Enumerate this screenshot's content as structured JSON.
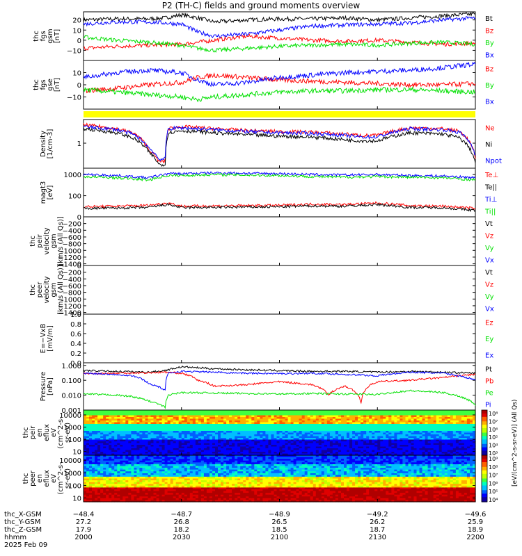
{
  "title": "P2 (TH-C) fields and ground moments overview",
  "date_label": "2025 Feb 09",
  "colors": {
    "red": "#ff0000",
    "green": "#00e000",
    "blue": "#0000ff",
    "black": "#000000",
    "yellow": "#ffff00"
  },
  "chart_data": [
    {
      "type": "line",
      "ylabel": [
        "thc",
        "fgs",
        "gsm",
        "[nT]"
      ],
      "ylim": [
        -20,
        28
      ],
      "yticks": [
        "20",
        "10",
        "0",
        "−10"
      ],
      "ytick_values": [
        20,
        10,
        0,
        -10
      ],
      "legend": [
        "Bt",
        "Bz",
        "By",
        "Bx"
      ],
      "series": [
        {
          "name": "Bt",
          "color": "#000000",
          "x": [
            2000,
            2010,
            2020,
            2025,
            2030,
            2035,
            2040,
            2050,
            2100,
            2110,
            2120,
            2130,
            2140,
            2150,
            2200
          ],
          "y": [
            20,
            21,
            21,
            22,
            25,
            22,
            18,
            20,
            21,
            21,
            22,
            20,
            22,
            24,
            26
          ]
        },
        {
          "name": "Bz",
          "color": "#ff0000",
          "x": [
            2000,
            2010,
            2020,
            2030,
            2035,
            2040,
            2050,
            2100,
            2110,
            2120,
            2130,
            2140,
            2150,
            2200
          ],
          "y": [
            -8,
            -6,
            -5,
            -4,
            -2,
            0,
            4,
            2,
            0,
            -1,
            0,
            -2,
            -4,
            -3
          ]
        },
        {
          "name": "By",
          "color": "#00e000",
          "x": [
            2000,
            2010,
            2020,
            2030,
            2035,
            2040,
            2050,
            2100,
            2110,
            2120,
            2130,
            2140,
            2150,
            2200
          ],
          "y": [
            3,
            0,
            -2,
            -5,
            -8,
            -10,
            -8,
            -6,
            -5,
            -4,
            -5,
            -3,
            -2,
            -4
          ]
        },
        {
          "name": "Bx",
          "color": "#0000ff",
          "x": [
            2000,
            2010,
            2020,
            2030,
            2035,
            2040,
            2050,
            2100,
            2110,
            2120,
            2130,
            2140,
            2150,
            2200
          ],
          "y": [
            16,
            18,
            18,
            16,
            8,
            4,
            6,
            10,
            14,
            15,
            16,
            17,
            20,
            22
          ]
        }
      ]
    },
    {
      "type": "line",
      "ylabel": [
        "thc",
        "fgs",
        "gse",
        "[nT]"
      ],
      "ylim": [
        -20,
        20
      ],
      "yticks": [
        "10",
        "0",
        "−10"
      ],
      "ytick_values": [
        10,
        0,
        -10
      ],
      "legend": [
        "Bz",
        "By",
        "Bx"
      ],
      "series": [
        {
          "name": "Bz",
          "color": "#ff0000",
          "x": [
            2000,
            2010,
            2020,
            2030,
            2035,
            2040,
            2050,
            2100,
            2110,
            2120,
            2130,
            2140,
            2150,
            2200
          ],
          "y": [
            -5,
            -3,
            0,
            2,
            6,
            8,
            6,
            4,
            3,
            2,
            1,
            0,
            0,
            1
          ]
        },
        {
          "name": "By",
          "color": "#00e000",
          "x": [
            2000,
            2010,
            2020,
            2030,
            2035,
            2040,
            2050,
            2100,
            2110,
            2120,
            2130,
            2140,
            2150,
            2200
          ],
          "y": [
            -4,
            -6,
            -8,
            -10,
            -12,
            -10,
            -8,
            -6,
            -5,
            -5,
            -4,
            -4,
            -5,
            -6
          ]
        },
        {
          "name": "Bx",
          "color": "#0000ff",
          "x": [
            2000,
            2010,
            2020,
            2030,
            2035,
            2040,
            2050,
            2100,
            2110,
            2120,
            2130,
            2140,
            2150,
            2200
          ],
          "y": [
            6,
            10,
            12,
            10,
            4,
            0,
            2,
            6,
            8,
            10,
            11,
            12,
            14,
            17
          ]
        }
      ]
    },
    {
      "type": "line",
      "ylabel": [
        "Density",
        "[1/cm-3]"
      ],
      "ylim": [
        0.15,
        6
      ],
      "scale": "log",
      "yticks": [
        "1"
      ],
      "ytick_values": [
        1
      ],
      "legend": [
        "Ne",
        "Ni",
        "Npot"
      ],
      "series": [
        {
          "name": "Ne",
          "color": "#ff0000",
          "x": [
            2000,
            2010,
            2015,
            2020,
            2023,
            2025,
            2026,
            2030,
            2040,
            2050,
            2100,
            2110,
            2120,
            2125,
            2130,
            2140,
            2150,
            2155,
            2200
          ],
          "y": [
            4,
            3,
            2.2,
            0.6,
            0.25,
            0.25,
            3,
            3.5,
            3,
            2.6,
            2.4,
            2.3,
            2.0,
            1.8,
            1.8,
            3.2,
            3,
            2.5,
            0.3
          ]
        },
        {
          "name": "Ni",
          "color": "#000000",
          "x": [
            2000,
            2010,
            2015,
            2020,
            2023,
            2025,
            2026,
            2030,
            2040,
            2050,
            2100,
            2110,
            2120,
            2125,
            2130,
            2140,
            2150,
            2155,
            2200
          ],
          "y": [
            3,
            2.2,
            1.5,
            0.5,
            0.2,
            0.2,
            2.2,
            2.6,
            2.2,
            1.9,
            1.7,
            1.6,
            1.3,
            1.2,
            1.2,
            2.2,
            2,
            1.5,
            0.22
          ]
        },
        {
          "name": "Npot",
          "color": "#0000ff",
          "x": [
            2000,
            2010,
            2015,
            2020,
            2023,
            2025,
            2026,
            2030,
            2040,
            2050,
            2100,
            2110,
            2120,
            2125,
            2130,
            2140,
            2150,
            2155,
            2200
          ],
          "y": [
            3.5,
            2.8,
            2,
            0.7,
            0.3,
            0.3,
            3,
            3.2,
            2.8,
            2.4,
            2.2,
            2.1,
            1.8,
            1.6,
            1.6,
            3,
            2.8,
            2.3,
            0.4
          ]
        }
      ]
    },
    {
      "type": "line",
      "ylabel": [
        "magt3",
        "[eV]"
      ],
      "ylim": [
        10,
        2000
      ],
      "scale": "log",
      "yticks": [
        "1000",
        "100"
      ],
      "ytick_values": [
        1000,
        100
      ],
      "legend": [
        "Te⊥",
        "Te||",
        "Ti⊥",
        "Ti||"
      ],
      "series": [
        {
          "name": "Te⊥",
          "color": "#ff0000",
          "x": [
            2000,
            2010,
            2020,
            2026,
            2030,
            2040,
            2050,
            2100,
            2110,
            2120,
            2130,
            2140,
            2150,
            2200
          ],
          "y": [
            30,
            32,
            35,
            45,
            32,
            33,
            34,
            35,
            40,
            38,
            45,
            34,
            32,
            25
          ]
        },
        {
          "name": "Te||",
          "color": "#000000",
          "x": [
            2000,
            2010,
            2020,
            2026,
            2030,
            2040,
            2050,
            2100,
            2110,
            2120,
            2130,
            2140,
            2150,
            2200
          ],
          "y": [
            25,
            26,
            28,
            38,
            27,
            28,
            29,
            30,
            33,
            32,
            38,
            28,
            27,
            20
          ]
        },
        {
          "name": "Ti⊥",
          "color": "#0000ff",
          "x": [
            2000,
            2010,
            2020,
            2026,
            2030,
            2040,
            2050,
            2100,
            2110,
            2120,
            2130,
            2140,
            2150,
            2200
          ],
          "y": [
            1000,
            900,
            700,
            1100,
            1100,
            1200,
            1150,
            1100,
            1000,
            950,
            1000,
            900,
            850,
            700
          ]
        },
        {
          "name": "Ti||",
          "color": "#00e000",
          "x": [
            2000,
            2010,
            2020,
            2026,
            2030,
            2040,
            2050,
            2100,
            2110,
            2120,
            2130,
            2140,
            2150,
            2200
          ],
          "y": [
            800,
            700,
            550,
            900,
            900,
            1000,
            950,
            900,
            800,
            750,
            800,
            750,
            700,
            550
          ]
        }
      ]
    },
    {
      "type": "line",
      "ylabel": [
        "thc",
        "peir",
        "velocity",
        "gsm",
        "[km/s (All Qs)]"
      ],
      "ylim": [
        -1450,
        0
      ],
      "yticks": [
        "0",
        "−200",
        "−400",
        "−600",
        "−800",
        "−1000",
        "−1200",
        "−1400"
      ],
      "ytick_values": [
        0,
        -200,
        -400,
        -600,
        -800,
        -1000,
        -1200,
        -1400
      ],
      "legend": [
        "Vt",
        "Vz",
        "Vy",
        "Vx"
      ],
      "series": []
    },
    {
      "type": "line",
      "ylabel": [
        "thc",
        "peer",
        "velocity",
        "gsm",
        "[km/s (All Qs)]"
      ],
      "ylim": [
        -1450,
        0
      ],
      "yticks": [
        "0",
        "−200",
        "−400",
        "−600",
        "−800",
        "−1000",
        "−1200",
        "−1400"
      ],
      "ytick_values": [
        0,
        -200,
        -400,
        -600,
        -800,
        -1000,
        -1200,
        -1400
      ],
      "legend": [
        "Vt",
        "Vz",
        "Vy",
        "Vx"
      ],
      "series": []
    },
    {
      "type": "line",
      "ylabel": [
        "E=−VxB",
        "[mV/m]"
      ],
      "ylim": [
        0,
        1
      ],
      "yticks": [
        "1.0",
        "0.8",
        "0.6",
        "0.4",
        "0.2",
        "0.0"
      ],
      "ytick_values": [
        1.0,
        0.8,
        0.6,
        0.4,
        0.2,
        0.0
      ],
      "legend": [
        "Ez",
        "Ey",
        "Ex"
      ],
      "series": []
    },
    {
      "type": "line",
      "ylabel": [
        "Pressure",
        "[nPa]"
      ],
      "ylim": [
        0.001,
        1.5
      ],
      "scale": "log",
      "yticks": [
        "1.000",
        "0.100",
        "0.010",
        "0.001"
      ],
      "ytick_values": [
        1,
        0.1,
        0.01,
        0.001
      ],
      "legend": [
        "Pt",
        "Pb",
        "Pe",
        "Pi"
      ],
      "series": [
        {
          "name": "Pt",
          "color": "#000000",
          "x": [
            2000,
            2010,
            2020,
            2025,
            2030,
            2040,
            2050,
            2100,
            2110,
            2120,
            2130,
            2140,
            2150,
            2200
          ],
          "y": [
            0.45,
            0.4,
            0.35,
            0.45,
            0.8,
            0.6,
            0.5,
            0.45,
            0.4,
            0.4,
            0.35,
            0.4,
            0.35,
            0.3
          ]
        },
        {
          "name": "Pb",
          "color": "#ff0000",
          "x": [
            2000,
            2010,
            2020,
            2025,
            2030,
            2035,
            2040,
            2050,
            2100,
            2110,
            2115,
            2120,
            2125,
            2130,
            2140,
            2150,
            2200
          ],
          "y": [
            0.28,
            0.3,
            0.32,
            0.35,
            0.3,
            0.1,
            0.04,
            0.05,
            0.08,
            0.05,
            0.01,
            0.04,
            0.003,
            0.08,
            0.1,
            0.15,
            0.25
          ]
        },
        {
          "name": "Pe",
          "color": "#00e000",
          "x": [
            2000,
            2010,
            2015,
            2020,
            2025,
            2026,
            2030,
            2040,
            2050,
            2100,
            2110,
            2120,
            2130,
            2140,
            2150,
            2200
          ],
          "y": [
            0.012,
            0.01,
            0.008,
            0.004,
            0.0015,
            0.01,
            0.015,
            0.014,
            0.013,
            0.012,
            0.013,
            0.012,
            0.011,
            0.02,
            0.015,
            0.002
          ]
        },
        {
          "name": "Pi",
          "color": "#0000ff",
          "x": [
            2000,
            2010,
            2015,
            2020,
            2025,
            2026,
            2030,
            2040,
            2050,
            2100,
            2110,
            2120,
            2130,
            2140,
            2150,
            2200
          ],
          "y": [
            0.3,
            0.25,
            0.2,
            0.06,
            0.02,
            0.3,
            0.4,
            0.35,
            0.3,
            0.28,
            0.3,
            0.25,
            0.2,
            0.35,
            0.3,
            0.1
          ]
        }
      ]
    },
    {
      "type": "heatmap",
      "ylabel": [
        "thc",
        "peir",
        "en",
        "eflux",
        "eV",
        "(cm^2-s-",
        "sr-eV)"
      ],
      "ylim": [
        5,
        25000
      ],
      "scale": "log",
      "yticks": [
        "10000",
        "1000",
        "100",
        "10"
      ],
      "ytick_values": [
        10000,
        1000,
        100,
        10
      ],
      "colorbar_ticks": [
        "10⁸",
        "10⁷",
        "10⁶",
        "10⁵",
        "10⁴",
        "10³"
      ]
    },
    {
      "type": "heatmap",
      "ylabel": [
        "thc",
        "peer",
        "en",
        "eflux",
        "eV",
        "(cm^2-s-",
        "sr-eV)"
      ],
      "ylim": [
        5,
        25000
      ],
      "scale": "log",
      "yticks": [
        "10000",
        "1000",
        "100",
        "10"
      ],
      "ytick_values": [
        10000,
        1000,
        100,
        10
      ],
      "colorbar_ticks": [
        "10⁹",
        "10⁸",
        "10⁷",
        "10⁶",
        "10⁵",
        "10⁴"
      ],
      "colorbar_label": "[eV/(cm^2-s-sr-eV)] (All Qs)"
    }
  ],
  "x_axis": {
    "rows": [
      {
        "label": "thc_X-GSM",
        "values": [
          "−48.4",
          "−48.7",
          "−48.9",
          "−49.2",
          "−49.6"
        ]
      },
      {
        "label": "thc_Y-GSM",
        "values": [
          "27.2",
          "26.8",
          "26.5",
          "26.2",
          "25.9"
        ]
      },
      {
        "label": "thc_Z-GSM",
        "values": [
          "17.9",
          "18.2",
          "18.5",
          "18.7",
          "18.9"
        ]
      },
      {
        "label": "hhmm",
        "values": [
          "2000",
          "2030",
          "2100",
          "2130",
          "2200"
        ]
      }
    ],
    "tick_times": [
      2000,
      2030,
      2100,
      2130,
      2200
    ]
  }
}
